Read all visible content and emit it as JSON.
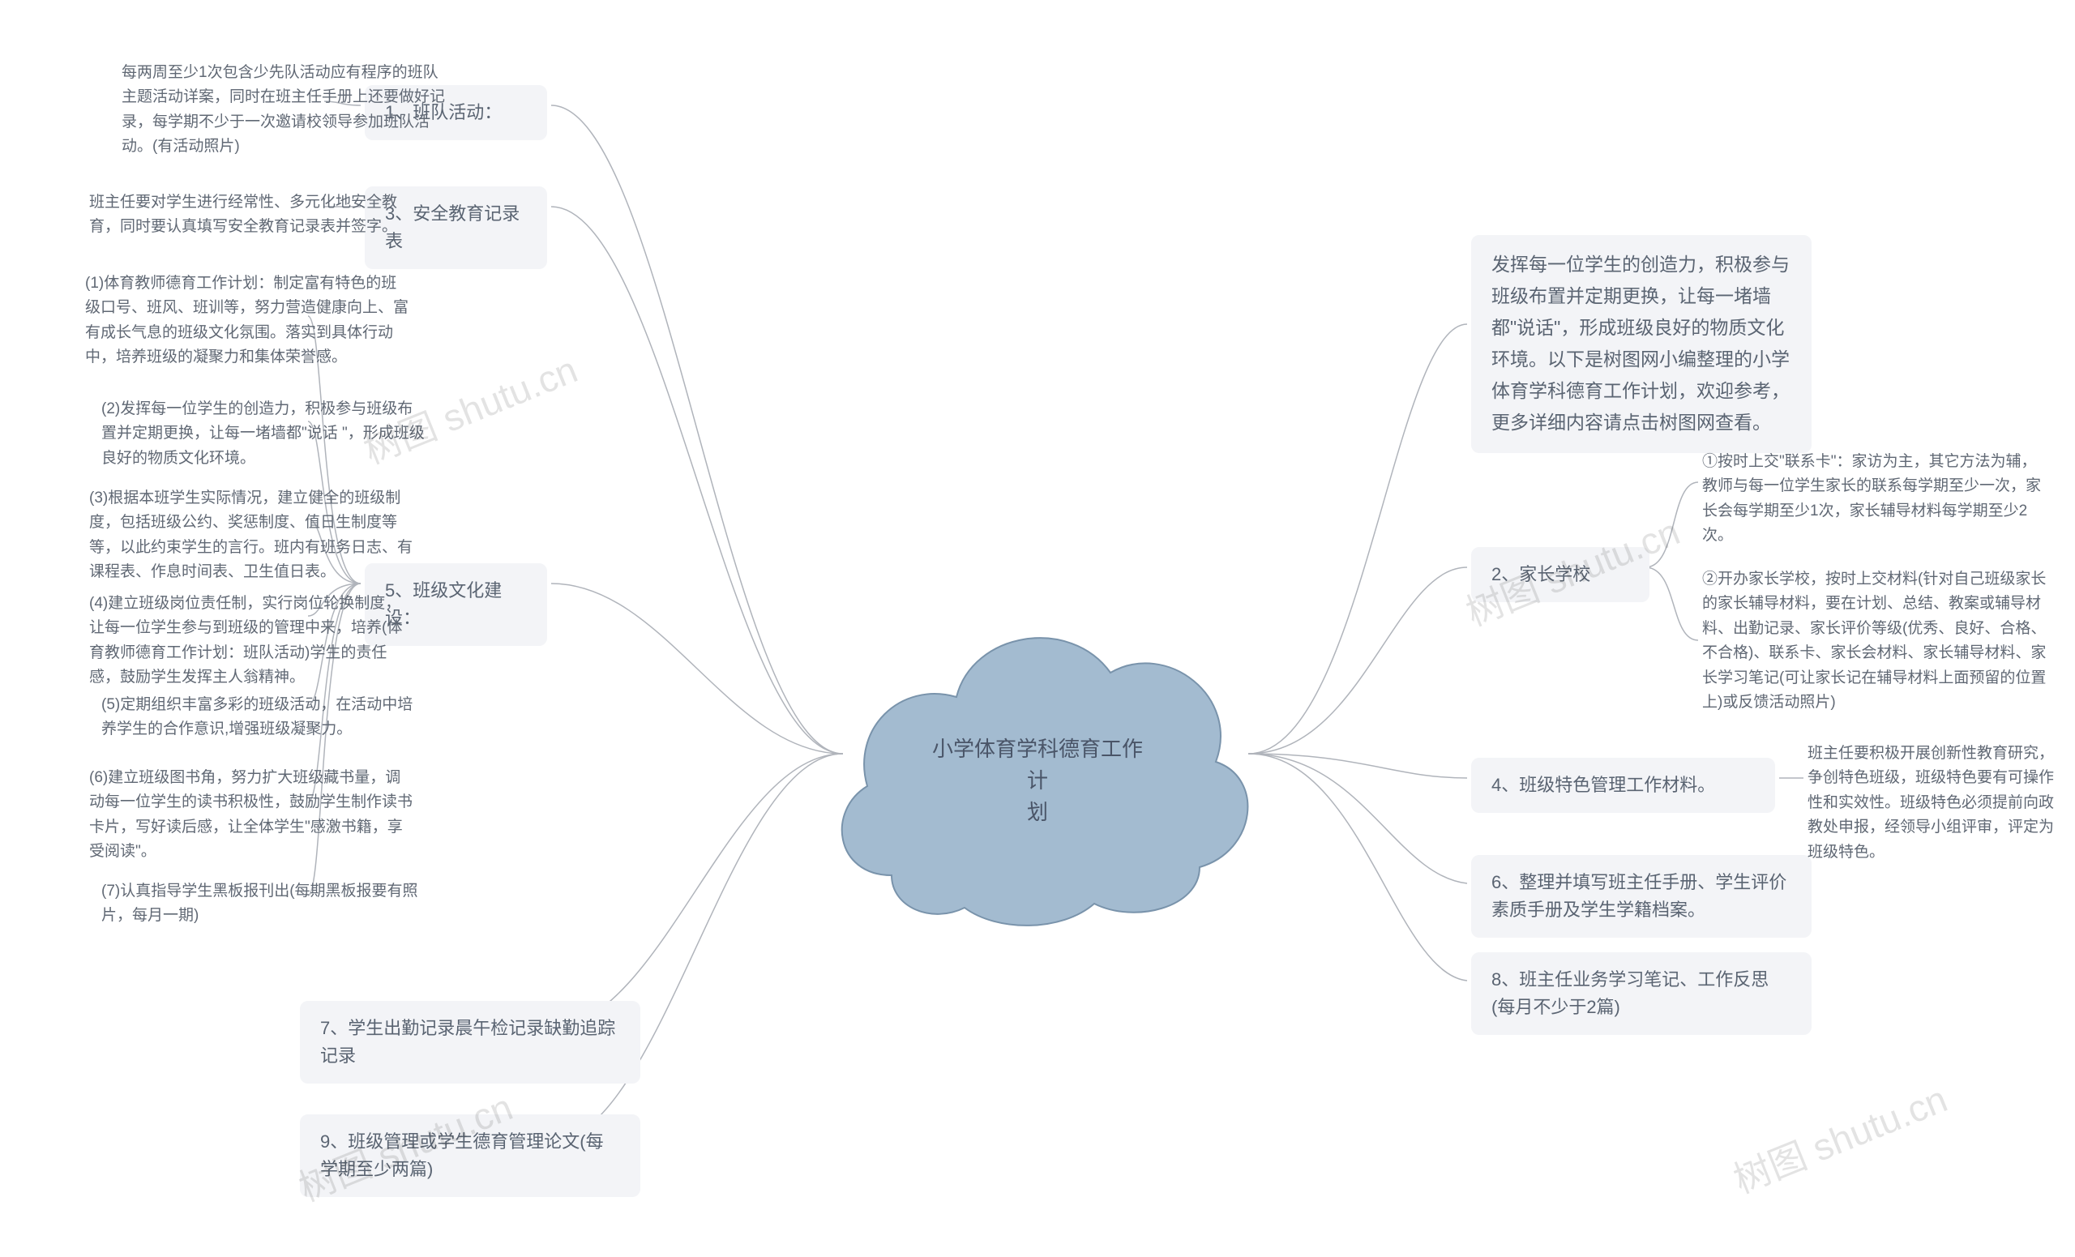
{
  "center": {
    "title": "小学体育学科德育工作计\n划"
  },
  "left_branches": {
    "b1": {
      "label": "1、班队活动："
    },
    "b3": {
      "label": "3、安全教育记录表"
    },
    "b5": {
      "label": "5、班级文化建设："
    },
    "b7": {
      "label": "7、学生出勤记录晨午检记录缺勤追踪记录"
    },
    "b9": {
      "label": "9、班级管理或学生德育管理论文(每学期至少两篇)"
    }
  },
  "left_leaves": {
    "l1": "每两周至少1次包含少先队活动应有程序的班队主题活动详案，同时在班主任手册上还要做好记录，每学期不少于一次邀请校领导参加班队活动。(有活动照片)",
    "l3": "班主任要对学生进行经常性、多元化地安全教育，同时要认真填写安全教育记录表并签字。",
    "l5_1": "(1)体育教师德育工作计划：制定富有特色的班级口号、班风、班训等，努力营造健康向上、富有成长气息的班级文化氛围。落实到具体行动中，培养班级的凝聚力和集体荣誉感。",
    "l5_2": "(2)发挥每一位学生的创造力，积极参与班级布置并定期更换，让每一堵墙都\"说话 \"，形成班级良好的物质文化环境。",
    "l5_3": "(3)根据本班学生实际情况，建立健全的班级制度，包括班级公约、奖惩制度、值日生制度等等，以此约束学生的言行。班内有班务日志、有课程表、作息时间表、卫生值日表。",
    "l5_4": "(4)建立班级岗位责任制，实行岗位轮换制度，让每一位学生参与到班级的管理中来，培养(体育教师德育工作计划：班队活动)学生的责任感，鼓励学生发挥主人翁精神。",
    "l5_5": "(5)定期组织丰富多彩的班级活动，在活动中培养学生的合作意识,增强班级凝聚力。",
    "l5_6": "(6)建立班级图书角，努力扩大班级藏书量，调动每一位学生的读书积极性，鼓励学生制作读书卡片，写好读后感，让全体学生\"感激书籍，享受阅读\"。",
    "l5_7": "(7)认真指导学生黑板报刊出(每期黑板报要有照片，每月一期)"
  },
  "right_branches": {
    "intro": "发挥每一位学生的创造力，积极参与班级布置并定期更换，让每一堵墙都\"说话\"，形成班级良好的物质文化环境。以下是树图网小编整理的小学体育学科德育工作计划，欢迎参考，更多详细内容请点击树图网查看。",
    "b2": {
      "label": "2、家长学校"
    },
    "b4": {
      "label": "4、班级特色管理工作材料。"
    },
    "b6": {
      "label": "6、整理并填写班主任手册、学生评价素质手册及学生学籍档案。"
    },
    "b8": {
      "label": "8、班主任业务学习笔记、工作反思(每月不少于2篇)"
    }
  },
  "right_leaves": {
    "r2_1": "①按时上交\"联系卡\"：家访为主，其它方法为辅，教师与每一位学生家长的联系每学期至少一次，家长会每学期至少1次，家长辅导材料每学期至少2次。",
    "r2_2": "②开办家长学校，按时上交材料(针对自己班级家长的家长辅导材料，要在计划、总结、教案或辅导材料、出勤记录、家长评价等级(优秀、良好、合格、不合格)、联系卡、家长会材料、家长辅导材料、家长学习笔记(可让家长记在辅导材料上面预留的位置上)或反馈活动照片)",
    "r4": "班主任要积极开展创新性教育研究，争创特色班级，班级特色要有可操作性和实效性。班级特色必须提前向政教处申报，经领导小组评审，评定为班级特色。"
  },
  "colors": {
    "cloud_fill": "#a3bbd0",
    "cloud_stroke": "#7993ab",
    "pill_bg": "#f3f4f7",
    "line": "#b0b4bb",
    "text": "#5a6472"
  },
  "watermark": "树图 shutu.cn"
}
